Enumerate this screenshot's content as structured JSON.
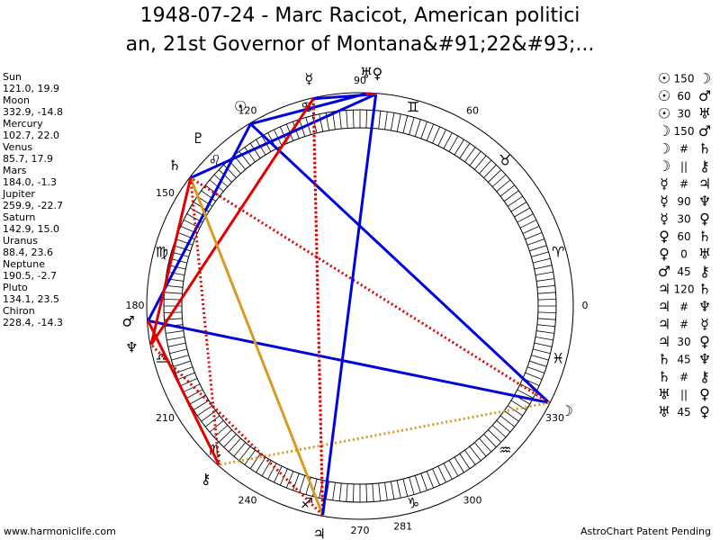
{
  "header": {
    "title_line1": "1948-07-24 - Marc Racicot, American politici",
    "title_line2": "an, 21st Governor of Montana&#91;22&#93;..."
  },
  "planets": [
    {
      "name": "Sun",
      "glyph": "☉",
      "coords": "121.0, 19.9"
    },
    {
      "name": "Moon",
      "glyph": "☽",
      "coords": "332.9, -14.8"
    },
    {
      "name": "Mercury",
      "glyph": "☿",
      "coords": "102.7, 22.0"
    },
    {
      "name": "Venus",
      "glyph": "♀",
      "coords": "85.7, 17.9"
    },
    {
      "name": "Mars",
      "glyph": "♂",
      "coords": "184.0, -1.3"
    },
    {
      "name": "Jupiter",
      "glyph": "♃",
      "coords": "259.9, -22.7"
    },
    {
      "name": "Saturn",
      "glyph": "♄",
      "coords": "142.9, 15.0"
    },
    {
      "name": "Uranus",
      "glyph": "♅",
      "coords": "88.4, 23.6"
    },
    {
      "name": "Neptune",
      "glyph": "♆",
      "coords": "190.5, -2.7"
    },
    {
      "name": "Pluto",
      "glyph": "♇",
      "coords": "134.1, 23.5"
    },
    {
      "name": "Chiron",
      "glyph": "⚷",
      "coords": "228.4, -14.3"
    }
  ],
  "signs": [
    "♈",
    "♉",
    "♊",
    "♋",
    "♌",
    "♍",
    "♎",
    "♏",
    "♐",
    "♑",
    "♒",
    "♓"
  ],
  "degree_labels": [
    0,
    60,
    90,
    120,
    150,
    180,
    210,
    240,
    270,
    281,
    300,
    330
  ],
  "aspects": [
    [
      "☉",
      "150",
      "☽"
    ],
    [
      "☉",
      "60",
      "♂"
    ],
    [
      "☉",
      "30",
      "♅"
    ],
    [
      "☽",
      "150",
      "♂"
    ],
    [
      "☽",
      "#",
      "♄"
    ],
    [
      "☽",
      "||",
      "⚷"
    ],
    [
      "☿",
      "#",
      "♃"
    ],
    [
      "☿",
      "90",
      "♆"
    ],
    [
      "☿",
      "30",
      "♀"
    ],
    [
      "♀",
      "60",
      "♄"
    ],
    [
      "♀",
      "0",
      "♅"
    ],
    [
      "♂",
      "45",
      "⚷"
    ],
    [
      "♃",
      "120",
      "♄"
    ],
    [
      "♃",
      "#",
      "♆"
    ],
    [
      "♃",
      "#",
      "☿"
    ],
    [
      "♃",
      "30",
      "♀"
    ],
    [
      "♄",
      "45",
      "♆"
    ],
    [
      "♄",
      "#",
      "⚷"
    ],
    [
      "♅",
      "||",
      "♀"
    ],
    [
      "♅",
      "45",
      "♀"
    ]
  ],
  "footer": {
    "left": "www.harmoniclife.com",
    "right": "AstroChart Patent Pending"
  }
}
